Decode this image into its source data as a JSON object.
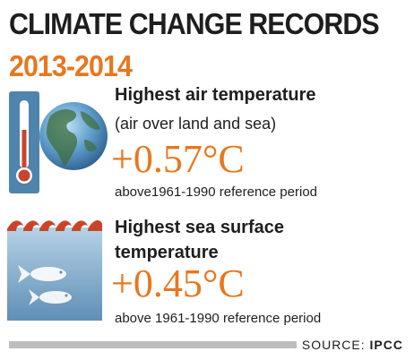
{
  "title": "CLIMATE CHANGE RECORDS",
  "years": "2013-2014",
  "records": [
    {
      "heading": "Highest air temperature",
      "subheading": "(air over land and sea)",
      "value": "+0.57°C",
      "reference": "above1961-1990 reference period",
      "icon": "thermometer-globe-icon"
    },
    {
      "heading_line1": "Highest sea surface",
      "heading_line2": "temperature",
      "value": "+0.45°C",
      "reference": "above 1961-1990 reference period",
      "icon": "sea-fish-icon"
    }
  ],
  "source": {
    "label": "SOURCE:",
    "name": "IPCC"
  },
  "colors": {
    "accent": "#e8771e",
    "text": "#1e1e1e",
    "sea": "#7fa9c9"
  }
}
